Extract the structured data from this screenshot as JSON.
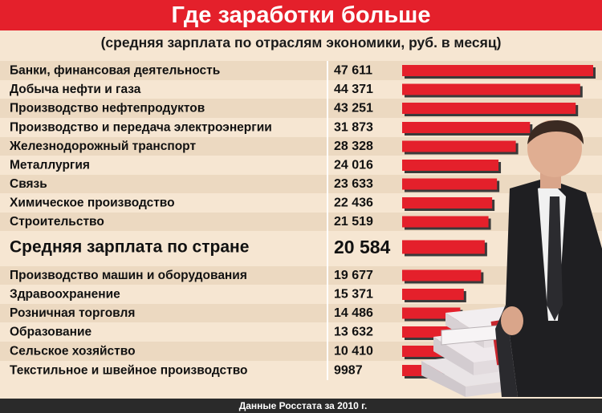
{
  "header": {
    "title": "Где заработки больше",
    "subtitle": "(средняя зарплата по отраслям экономики, руб. в месяц)"
  },
  "footer": {
    "source": "Данные Росстата за 2010 г."
  },
  "colors": {
    "bar": "#e4202b",
    "bar_shadow": "#3a3a3a",
    "title_band": "#e4202b",
    "row_band": "#ecd9c1",
    "background": "#f6e6d2",
    "footer_band": "#2a2a2a"
  },
  "chart_data": {
    "type": "bar",
    "orientation": "horizontal",
    "title": "Где заработки больше",
    "subtitle": "(средняя зарплата по отраслям экономики, руб. в месяц)",
    "categories": [
      "Банки, финансовая деятельность",
      "Добыча нефти и газа",
      "Производство нефтепродуктов",
      "Производство и передача электроэнергии",
      "Железнодорожный транспорт",
      "Металлургия",
      "Связь",
      "Химическое производство",
      "Строительство",
      "Средняя зарплата по стране",
      "Производство машин и оборудования",
      "Здравоохранение",
      "Розничная торговля",
      "Образование",
      "Сельское хозяйство",
      "Текстильное и швейное производство"
    ],
    "values": [
      47611,
      44371,
      43251,
      31873,
      28328,
      24016,
      23633,
      22436,
      21519,
      20584,
      19677,
      15371,
      14486,
      13632,
      10410,
      9987
    ],
    "value_labels": [
      "47 611",
      "44 371",
      "43 251",
      "31 873",
      "28 328",
      "24 016",
      "23 633",
      "22 436",
      "21 519",
      "20 584",
      "19 677",
      "15 371",
      "14 486",
      "13 632",
      "10 410",
      "9987"
    ],
    "highlight": "Средняя зарплата по стране",
    "xlabel": "",
    "ylabel": "",
    "grid": false,
    "legend": "none"
  }
}
